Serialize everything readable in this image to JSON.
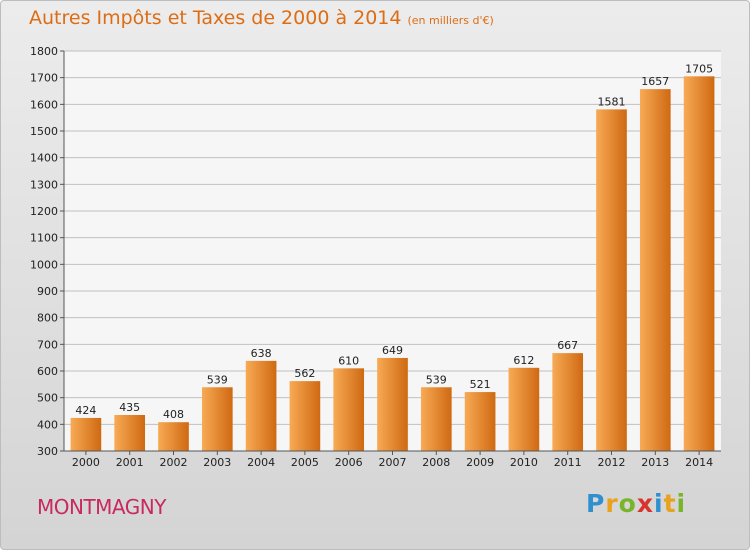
{
  "title": "Autres Impôts et Taxes de 2000 à 2014",
  "unit_note": "(en milliers d'€)",
  "commune": "MONTMAGNY",
  "brand": {
    "text": "Proxiti",
    "letters": [
      {
        "ch": "P",
        "color": "#2f8fd0"
      },
      {
        "ch": "r",
        "color": "#e8a21b"
      },
      {
        "ch": "o",
        "color": "#79b52b"
      },
      {
        "ch": "x",
        "color": "#d9342b"
      },
      {
        "ch": "i",
        "color": "#2f8fd0"
      },
      {
        "ch": "t",
        "color": "#e8a21b"
      },
      {
        "ch": "i",
        "color": "#79b52b"
      }
    ]
  },
  "colors": {
    "title": "#dd6d14",
    "commune": "#c8295e",
    "bar_light": "#f8aa55",
    "bar_dark": "#cf6912",
    "grid": "#c0c0c0",
    "axis_text": "#222222"
  },
  "chart_data": {
    "type": "bar",
    "categories": [
      "2000",
      "2001",
      "2002",
      "2003",
      "2004",
      "2005",
      "2006",
      "2007",
      "2008",
      "2009",
      "2010",
      "2011",
      "2012",
      "2013",
      "2014"
    ],
    "values": [
      424,
      435,
      408,
      539,
      638,
      562,
      610,
      649,
      539,
      521,
      612,
      667,
      1581,
      1657,
      1705
    ],
    "ylim": [
      300,
      1800
    ],
    "yticks": [
      300,
      400,
      500,
      600,
      700,
      800,
      900,
      1000,
      1100,
      1200,
      1300,
      1400,
      1500,
      1600,
      1700,
      1800
    ],
    "grid": true,
    "data_labels": true
  }
}
